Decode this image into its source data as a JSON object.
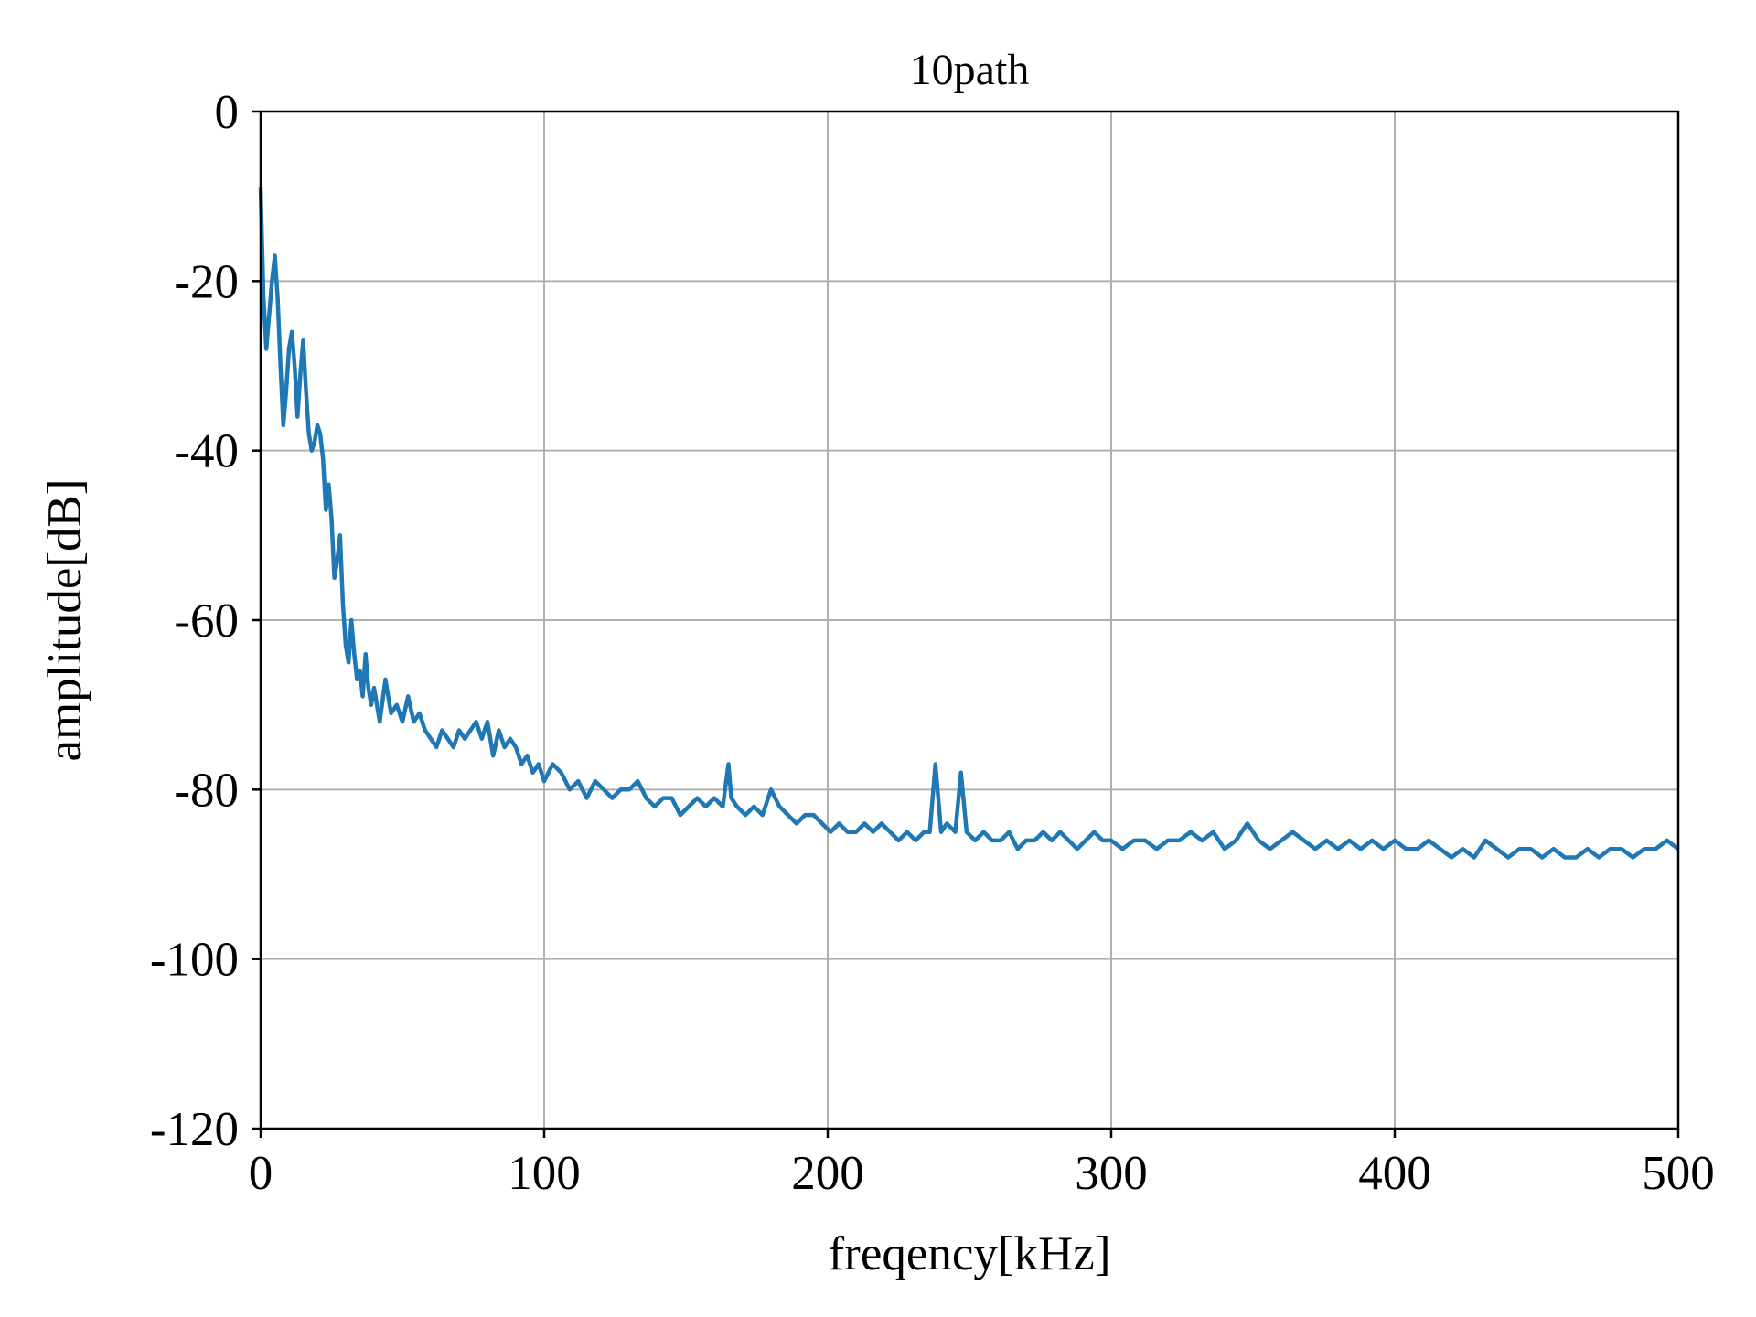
{
  "chart_data": {
    "type": "line",
    "title": "10path",
    "xlabel": "freqency[kHz]",
    "ylabel": "amplitude[dB]",
    "xlim": [
      0,
      500
    ],
    "ylim": [
      -120,
      0
    ],
    "xticks": [
      0,
      100,
      200,
      300,
      400,
      500
    ],
    "xtick_labels": [
      "0",
      "100",
      "200",
      "300",
      "400",
      "500"
    ],
    "yticks": [
      0,
      -20,
      -40,
      -60,
      -80,
      -100,
      -120
    ],
    "ytick_labels": [
      "0",
      "-20",
      "-40",
      "-60",
      "-80",
      "-100",
      "-120"
    ],
    "grid": true,
    "series": [
      {
        "color": "#1f77b4",
        "x": [
          0,
          1,
          2,
          3,
          4,
          5,
          6,
          7,
          8,
          9,
          10,
          11,
          12,
          13,
          14,
          15,
          16,
          17,
          18,
          19,
          20,
          21,
          22,
          23,
          24,
          25,
          26,
          27,
          28,
          29,
          30,
          31,
          32,
          33,
          34,
          35,
          36,
          37,
          38,
          39,
          40,
          42,
          44,
          46,
          48,
          50,
          52,
          54,
          56,
          58,
          60,
          62,
          64,
          66,
          68,
          70,
          72,
          74,
          76,
          78,
          80,
          82,
          84,
          86,
          88,
          90,
          92,
          94,
          96,
          98,
          100,
          103,
          106,
          109,
          112,
          115,
          118,
          121,
          124,
          127,
          130,
          133,
          136,
          139,
          142,
          145,
          148,
          151,
          154,
          157,
          160,
          163,
          165,
          166,
          168,
          171,
          174,
          177,
          180,
          183,
          186,
          189,
          192,
          195,
          198,
          201,
          204,
          207,
          210,
          213,
          216,
          219,
          222,
          225,
          228,
          231,
          234,
          236,
          238,
          240,
          242,
          245,
          247,
          249,
          252,
          255,
          258,
          261,
          264,
          267,
          270,
          273,
          276,
          279,
          282,
          285,
          288,
          291,
          294,
          297,
          300,
          304,
          308,
          312,
          316,
          320,
          324,
          328,
          332,
          336,
          340,
          344,
          348,
          352,
          356,
          360,
          364,
          368,
          372,
          376,
          380,
          384,
          388,
          392,
          396,
          400,
          404,
          408,
          412,
          416,
          420,
          424,
          428,
          432,
          436,
          440,
          444,
          448,
          452,
          456,
          460,
          464,
          468,
          472,
          476,
          480,
          484,
          488,
          492,
          496,
          500
        ],
        "y": [
          -9,
          -22,
          -28,
          -24,
          -20,
          -17,
          -22,
          -30,
          -37,
          -33,
          -28,
          -26,
          -30,
          -36,
          -31,
          -27,
          -33,
          -38,
          -40,
          -39,
          -37,
          -38,
          -41,
          -47,
          -44,
          -48,
          -55,
          -53,
          -50,
          -58,
          -63,
          -65,
          -60,
          -64,
          -67,
          -66,
          -69,
          -64,
          -68,
          -70,
          -68,
          -72,
          -67,
          -71,
          -70,
          -72,
          -69,
          -72,
          -71,
          -73,
          -74,
          -75,
          -73,
          -74,
          -75,
          -73,
          -74,
          -73,
          -72,
          -74,
          -72,
          -76,
          -73,
          -75,
          -74,
          -75,
          -77,
          -76,
          -78,
          -77,
          -79,
          -77,
          -78,
          -80,
          -79,
          -81,
          -79,
          -80,
          -81,
          -80,
          -80,
          -79,
          -81,
          -82,
          -81,
          -81,
          -83,
          -82,
          -81,
          -82,
          -81,
          -82,
          -77,
          -81,
          -82,
          -83,
          -82,
          -83,
          -80,
          -82,
          -83,
          -84,
          -83,
          -83,
          -84,
          -85,
          -84,
          -85,
          -85,
          -84,
          -85,
          -84,
          -85,
          -86,
          -85,
          -86,
          -85,
          -85,
          -77,
          -85,
          -84,
          -85,
          -78,
          -85,
          -86,
          -85,
          -86,
          -86,
          -85,
          -87,
          -86,
          -86,
          -85,
          -86,
          -85,
          -86,
          -87,
          -86,
          -85,
          -86,
          -86,
          -87,
          -86,
          -86,
          -87,
          -86,
          -86,
          -85,
          -86,
          -85,
          -87,
          -86,
          -84,
          -86,
          -87,
          -86,
          -85,
          -86,
          -87,
          -86,
          -87,
          -86,
          -87,
          -86,
          -87,
          -86,
          -87,
          -87,
          -86,
          -87,
          -88,
          -87,
          -88,
          -86,
          -87,
          -88,
          -87,
          -87,
          -88,
          -87,
          -88,
          -88,
          -87,
          -88,
          -87,
          -87,
          -88,
          -87,
          -87,
          -86,
          -87
        ]
      }
    ]
  }
}
